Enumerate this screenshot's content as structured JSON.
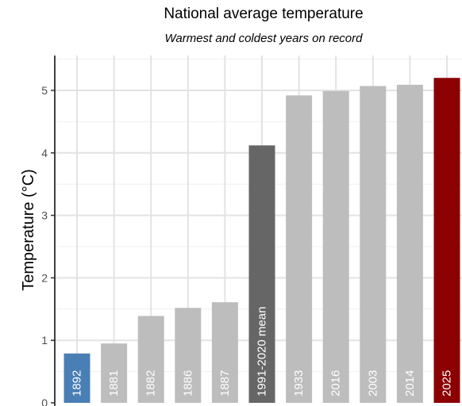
{
  "chart_data": {
    "type": "bar",
    "title": "National average temperature",
    "subtitle": "Warmest and coldest years on record",
    "xlabel": "",
    "ylabel": "Temperature (°C)",
    "ylim": [
      0,
      5.5
    ],
    "yticks": [
      0,
      1,
      2,
      3,
      4,
      5
    ],
    "grid": true,
    "categories": [
      "1892",
      "1881",
      "1882",
      "1886",
      "1887",
      "1991-2020 mean",
      "1933",
      "2016",
      "2003",
      "2014",
      "2025"
    ],
    "values": [
      0.79,
      0.95,
      1.39,
      1.52,
      1.61,
      4.12,
      4.92,
      4.99,
      5.07,
      5.09,
      5.2
    ],
    "bar_colors": [
      "#4a7fb5",
      "#bdbdbd",
      "#bdbdbd",
      "#bdbdbd",
      "#bdbdbd",
      "#666666",
      "#bdbdbd",
      "#bdbdbd",
      "#bdbdbd",
      "#bdbdbd",
      "#8b0000"
    ],
    "label_color": "#ffffff"
  }
}
